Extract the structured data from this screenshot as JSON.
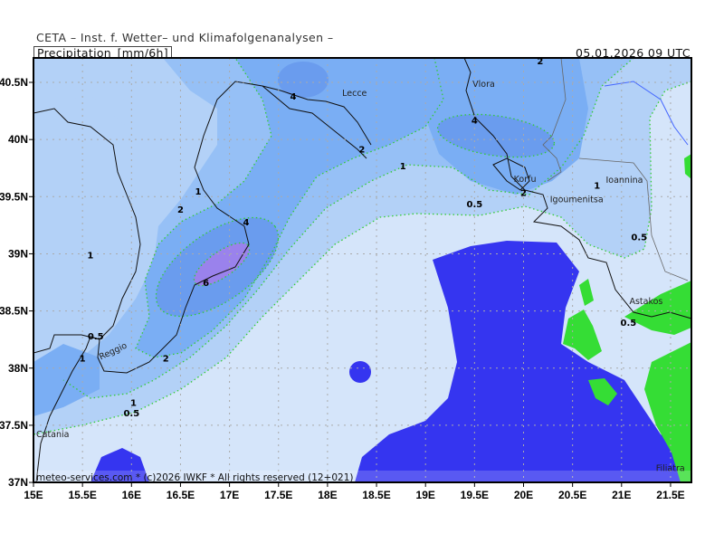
{
  "header": {
    "institute": "CETA – Inst. f. Wetter– und Klimafolgenanalysen –",
    "parameter": "Precipitation_[mm/6h]",
    "valid_time": "05.01.2026 09 UTC"
  },
  "footer": "meteo-services.com * (c)2026 IWKF * All rights reserved (12+021)",
  "axes": {
    "lon_ticks": [
      15,
      15.5,
      16,
      16.5,
      17,
      17.5,
      18,
      18.5,
      19,
      19.5,
      20,
      20.5,
      21,
      21.5
    ],
    "lon_labels": [
      "15E",
      "15.5E",
      "16E",
      "16.5E",
      "17E",
      "17.5E",
      "18E",
      "18.5E",
      "19E",
      "19.5E",
      "20E",
      "20.5E",
      "21E",
      "21.5E"
    ],
    "lat_ticks": [
      40.5,
      40,
      39.5,
      39,
      38.5,
      38,
      37.5,
      37
    ],
    "lat_labels": [
      "40.5N",
      "40N",
      "39.5N",
      "39N",
      "38.5N",
      "38N",
      "37.5N",
      "37N"
    ],
    "lon_range": [
      15,
      21.72
    ],
    "lat_range": [
      37,
      40.72
    ]
  },
  "colors": {
    "lt_0_5": "#d5e5fa",
    "0_5_to_1": "#b3d1f7",
    "1_to_2": "#96c0f6",
    "2_to_4": "#7aaef4",
    "4_to_6": "#6a9cee",
    "gt_6": "#9a82ec",
    "sea_mask": "#3535f0",
    "land_mask": "#35dd35",
    "contour": "#33cc33"
  },
  "contour_labels": [
    {
      "text": "4",
      "lon": 17.65,
      "lat": 40.38
    },
    {
      "text": "2",
      "lon": 18.35,
      "lat": 39.92
    },
    {
      "text": "1",
      "lon": 18.77,
      "lat": 39.77
    },
    {
      "text": "0.5",
      "lon": 19.5,
      "lat": 39.44
    },
    {
      "text": "4",
      "lon": 19.5,
      "lat": 40.17
    },
    {
      "text": "2",
      "lon": 20.0,
      "lat": 39.57
    },
    {
      "text": "2",
      "lon": 20.17,
      "lat": 40.69
    },
    {
      "text": "1",
      "lon": 20.75,
      "lat": 39.6
    },
    {
      "text": "0.5",
      "lon": 21.18,
      "lat": 39.15
    },
    {
      "text": "0.5",
      "lon": 21.07,
      "lat": 38.44
    },
    {
      "text": "1",
      "lon": 16.68,
      "lat": 39.55
    },
    {
      "text": "2",
      "lon": 16.5,
      "lat": 39.39
    },
    {
      "text": "4",
      "lon": 17.17,
      "lat": 39.28
    },
    {
      "text": "6",
      "lon": 16.76,
      "lat": 38.75
    },
    {
      "text": "1",
      "lon": 15.58,
      "lat": 38.99
    },
    {
      "text": "0.5",
      "lon": 15.69,
      "lat": 38.22
    },
    {
      "text": "1",
      "lon": 15.5,
      "lat": 38.09
    },
    {
      "text": "2",
      "lon": 16.35,
      "lat": 38.09
    },
    {
      "text": "1",
      "lon": 16.02,
      "lat": 37.7
    },
    {
      "text": "0.5",
      "lon": 16.0,
      "lat": 37.61
    }
  ],
  "cities": [
    {
      "name": "Lecce",
      "lon": 18.15,
      "lat": 40.38
    },
    {
      "name": "Vlora",
      "lon": 19.48,
      "lat": 40.46
    },
    {
      "name": "Korfu",
      "lon": 19.9,
      "lat": 39.63
    },
    {
      "name": "Igoumenitsa",
      "lon": 20.27,
      "lat": 39.45
    },
    {
      "name": "Ioannina",
      "lon": 20.84,
      "lat": 39.62
    },
    {
      "name": "Astakos",
      "lon": 21.08,
      "lat": 38.53
    },
    {
      "name": "Reggio",
      "lon": 15.65,
      "lat": 38.12
    },
    {
      "name": "Catania",
      "lon": 14.63,
      "lat": 37.48
    },
    {
      "name": "Filiatra",
      "lon": 21.35,
      "lat": 37.1
    }
  ]
}
